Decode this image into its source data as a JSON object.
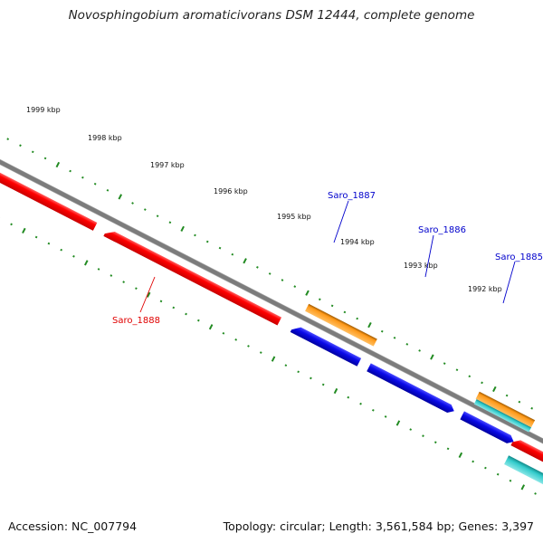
{
  "title": "Novosphingobium aromaticivorans DSM 12444, complete genome",
  "footer": {
    "accession": "Accession: NC_007794",
    "summary": "Topology: circular; Length: 3,561,584 bp; Genes: 3,397"
  },
  "colors": {
    "backbone": "#808080",
    "tick": "#228b22",
    "red": "#ff0000",
    "blue": "#1010e8",
    "orange": "#ff9a1a",
    "cyan": "#33cccc",
    "label_red": "#e00000",
    "label_blue": "#0000cc"
  },
  "kbp_labels": [
    "1999 kbp",
    "1998 kbp",
    "1997 kbp",
    "1996 kbp",
    "1995 kbp",
    "1994 kbp",
    "1993 kbp",
    "1992 kbp"
  ],
  "gene_labels": [
    {
      "name": "Saro_1887",
      "color": "blue"
    },
    {
      "name": "Saro_1886",
      "color": "blue"
    },
    {
      "name": "Saro_1885",
      "color": "blue"
    },
    {
      "name": "Saro_1888",
      "color": "red"
    }
  ]
}
